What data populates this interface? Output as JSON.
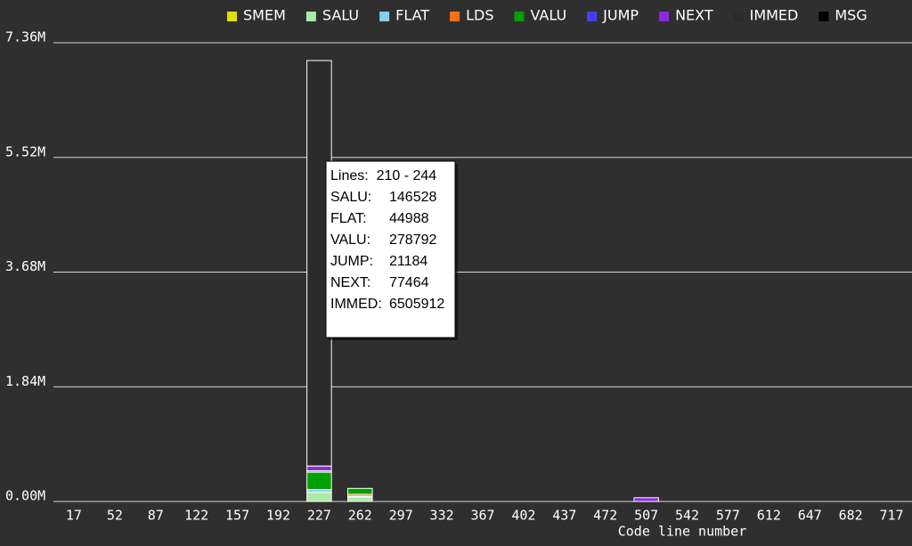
{
  "chart_data": {
    "type": "stacked_bar",
    "x_label": "Code line number",
    "categories": [
      "17",
      "52",
      "87",
      "122",
      "157",
      "192",
      "227",
      "262",
      "297",
      "332",
      "367",
      "402",
      "437",
      "472",
      "507",
      "542",
      "577",
      "612",
      "647",
      "682",
      "717"
    ],
    "series": [
      {
        "name": "SMEM",
        "color": "#e0e000",
        "values": [
          0,
          0,
          0,
          0,
          0,
          0,
          0,
          0,
          0,
          0,
          0,
          0,
          0,
          0,
          0,
          0,
          0,
          0,
          0,
          0,
          0
        ]
      },
      {
        "name": "SALU",
        "color": "#a8eca8",
        "values": [
          0,
          0,
          0,
          0,
          0,
          0,
          146528,
          70000,
          0,
          0,
          0,
          0,
          0,
          0,
          0,
          0,
          0,
          0,
          0,
          0,
          0
        ]
      },
      {
        "name": "FLAT",
        "color": "#87ceeb",
        "values": [
          0,
          0,
          0,
          0,
          0,
          0,
          44988,
          15000,
          0,
          0,
          0,
          0,
          0,
          0,
          0,
          0,
          0,
          0,
          0,
          0,
          0
        ]
      },
      {
        "name": "LDS",
        "color": "#ff7010",
        "values": [
          0,
          0,
          0,
          0,
          0,
          0,
          0,
          30000,
          0,
          0,
          0,
          0,
          0,
          0,
          0,
          0,
          0,
          0,
          0,
          0,
          0
        ]
      },
      {
        "name": "VALU",
        "color": "#00a000",
        "values": [
          0,
          0,
          0,
          0,
          0,
          0,
          278792,
          95000,
          0,
          0,
          0,
          0,
          0,
          0,
          0,
          0,
          0,
          0,
          0,
          0,
          0
        ]
      },
      {
        "name": "JUMP",
        "color": "#4040ff",
        "values": [
          0,
          0,
          0,
          0,
          0,
          0,
          21184,
          0,
          0,
          0,
          0,
          0,
          0,
          0,
          0,
          0,
          0,
          0,
          0,
          0,
          0
        ]
      },
      {
        "name": "NEXT",
        "color": "#8a2be2",
        "values": [
          0,
          0,
          0,
          0,
          0,
          0,
          77464,
          0,
          0,
          0,
          0,
          0,
          0,
          0,
          60000,
          0,
          0,
          0,
          0,
          0,
          0
        ]
      },
      {
        "name": "IMMED",
        "color": "#2b2b2b",
        "values": [
          0,
          0,
          0,
          0,
          0,
          0,
          6505912,
          0,
          0,
          0,
          0,
          0,
          0,
          0,
          0,
          0,
          0,
          0,
          0,
          0,
          0
        ]
      },
      {
        "name": "MSG",
        "color": "#000000",
        "values": [
          0,
          0,
          0,
          0,
          0,
          0,
          0,
          0,
          0,
          0,
          0,
          0,
          0,
          0,
          0,
          0,
          0,
          0,
          0,
          0,
          0
        ]
      }
    ],
    "ylim": [
      0,
      7360000
    ],
    "yticks": [
      {
        "value": 0,
        "label": "0.00M"
      },
      {
        "value": 1840000,
        "label": "1.84M"
      },
      {
        "value": 3680000,
        "label": "3.68M"
      },
      {
        "value": 5520000,
        "label": "5.52M"
      },
      {
        "value": 7360000,
        "label": "7.36M"
      }
    ],
    "grid": true,
    "tooltip": {
      "title": "Lines:  210 - 244",
      "rows": [
        {
          "label": "SALU:",
          "value": 146528
        },
        {
          "label": "FLAT:",
          "value": 44988
        },
        {
          "label": "VALU:",
          "value": 278792
        },
        {
          "label": "JUMP:",
          "value": 21184
        },
        {
          "label": "NEXT:",
          "value": 77464
        },
        {
          "label": "IMMED:",
          "value": 6505912
        }
      ]
    }
  }
}
